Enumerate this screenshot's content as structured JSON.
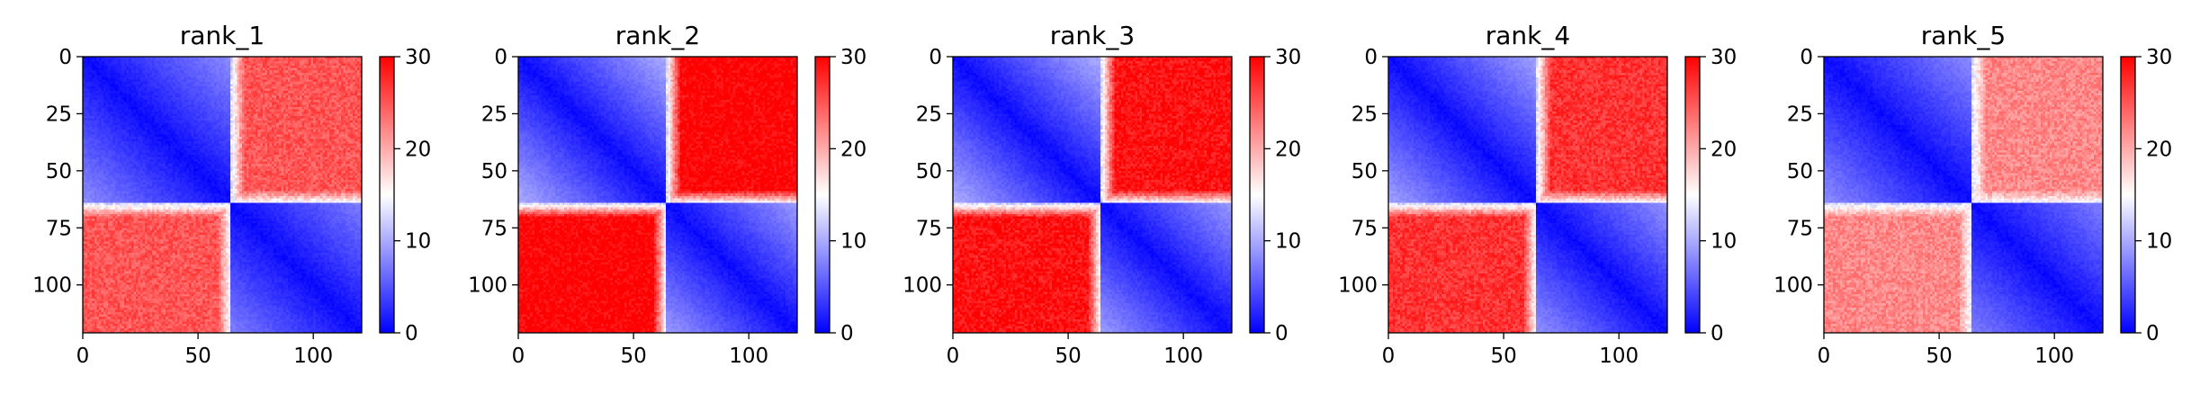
{
  "chart_data": [
    {
      "type": "heatmap",
      "title": "rank_1",
      "matrix_size": 121,
      "block_boundary": 64,
      "xticks": [
        0,
        50,
        100
      ],
      "yticks": [
        0,
        25,
        50,
        75,
        100
      ],
      "colorbar": {
        "vmin": 0,
        "vmax": 30,
        "ticks": [
          0,
          10,
          20,
          30
        ],
        "colormap": "bwr"
      },
      "off_block_level": 25,
      "diag_slope": 0.12
    },
    {
      "type": "heatmap",
      "title": "rank_2",
      "matrix_size": 121,
      "block_boundary": 64,
      "xticks": [
        0,
        50,
        100
      ],
      "yticks": [
        0,
        25,
        50,
        75,
        100
      ],
      "colorbar": {
        "vmin": 0,
        "vmax": 30,
        "ticks": [
          0,
          10,
          20,
          30
        ],
        "colormap": "bwr"
      },
      "off_block_level": 30,
      "diag_slope": 0.15
    },
    {
      "type": "heatmap",
      "title": "rank_3",
      "matrix_size": 121,
      "block_boundary": 64,
      "xticks": [
        0,
        50,
        100
      ],
      "yticks": [
        0,
        25,
        50,
        75,
        100
      ],
      "colorbar": {
        "vmin": 0,
        "vmax": 30,
        "ticks": [
          0,
          10,
          20,
          30
        ],
        "colormap": "bwr"
      },
      "off_block_level": 29,
      "diag_slope": 0.15
    },
    {
      "type": "heatmap",
      "title": "rank_4",
      "matrix_size": 121,
      "block_boundary": 64,
      "xticks": [
        0,
        50,
        100
      ],
      "yticks": [
        0,
        25,
        50,
        75,
        100
      ],
      "colorbar": {
        "vmin": 0,
        "vmax": 30,
        "ticks": [
          0,
          10,
          20,
          30
        ],
        "colormap": "bwr"
      },
      "off_block_level": 27,
      "diag_slope": 0.14
    },
    {
      "type": "heatmap",
      "title": "rank_5",
      "matrix_size": 121,
      "block_boundary": 64,
      "xticks": [
        0,
        50,
        100
      ],
      "yticks": [
        0,
        25,
        50,
        75,
        100
      ],
      "colorbar": {
        "vmin": 0,
        "vmax": 30,
        "ticks": [
          0,
          10,
          20,
          30
        ],
        "colormap": "bwr"
      },
      "off_block_level": 22,
      "diag_slope": 0.12
    }
  ]
}
